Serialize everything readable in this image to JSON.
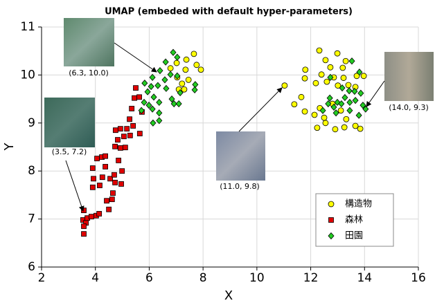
{
  "chart_data": {
    "type": "scatter",
    "title": "UMAP (embeded with default hyper-parameters)",
    "x_label": "X",
    "y_label": "Y",
    "xlim": [
      2,
      16
    ],
    "ylim": [
      6,
      11
    ],
    "xticks": [
      2,
      4,
      6,
      8,
      10,
      12,
      14,
      16
    ],
    "yticks": [
      6,
      7,
      8,
      9,
      10,
      11
    ],
    "grid": true,
    "legend": "lower right",
    "series": [
      {
        "name": "構造物",
        "color": "#ffff00",
        "marker": "circle",
        "x": [
          7.66,
          7.38,
          7.02,
          7.92,
          7.76,
          6.79,
          7.35,
          7.04,
          7.46,
          7.22,
          7.3,
          7.1,
          12.32,
          12.99,
          11.8,
          12.55,
          12.73,
          13.19,
          13.3,
          12.4,
          12.86,
          13.22,
          13.71,
          13.97,
          11.78,
          12.19,
          12.6,
          13.01,
          13.4,
          13.66,
          11.39,
          11.65,
          11.78,
          12.14,
          12.34,
          12.5,
          12.81,
          13.12,
          13.32,
          12.24,
          12.55,
          12.91,
          13.25,
          13.66,
          13.84,
          11.03
        ],
        "values": [
          10.44,
          10.32,
          10.25,
          10.11,
          10.21,
          10.14,
          10.11,
          9.95,
          9.9,
          9.82,
          9.7,
          9.7,
          10.51,
          10.45,
          10.11,
          10.31,
          10.16,
          10.15,
          10.29,
          10.01,
          9.95,
          9.94,
          9.98,
          9.98,
          9.93,
          9.83,
          9.86,
          9.78,
          9.79,
          9.75,
          9.39,
          9.54,
          9.24,
          9.17,
          9.31,
          9.11,
          9.4,
          9.26,
          9.08,
          8.9,
          9.0,
          8.87,
          8.91,
          8.94,
          8.88,
          9.78
        ]
      },
      {
        "name": "森林",
        "color": "#e00000",
        "marker": "square",
        "x": [
          3.57,
          3.54,
          3.65,
          3.57,
          3.57,
          3.7,
          3.85,
          4.03,
          4.14,
          3.9,
          3.93,
          3.9,
          4.06,
          4.24,
          4.37,
          4.37,
          4.26,
          4.16,
          4.42,
          4.5,
          4.62,
          4.65,
          4.73,
          4.55,
          4.7,
          4.96,
          4.86,
          4.93,
          4.73,
          4.83,
          5.11,
          5.06,
          4.75,
          4.93,
          5.17,
          5.4,
          5.65,
          5.27,
          5.35,
          5.45,
          5.5,
          5.63,
          5.73,
          5.29,
          4.99
        ],
        "values": [
          7.18,
          6.98,
          6.92,
          6.85,
          6.69,
          7.02,
          7.05,
          7.07,
          7.11,
          7.66,
          7.84,
          8.06,
          8.26,
          8.29,
          8.31,
          8.09,
          7.87,
          7.7,
          7.38,
          7.2,
          7.41,
          7.54,
          7.76,
          7.84,
          7.92,
          7.73,
          8.22,
          8.48,
          8.51,
          8.65,
          8.49,
          8.72,
          8.85,
          8.88,
          8.88,
          8.94,
          8.78,
          9.08,
          9.3,
          9.52,
          9.73,
          9.54,
          9.23,
          8.74,
          8.0
        ]
      },
      {
        "name": "田園",
        "color": "#22cc22",
        "marker": "diamond",
        "x": [
          6.89,
          7.04,
          6.61,
          6.4,
          6.79,
          6.12,
          6.58,
          6.32,
          6.07,
          5.83,
          5.94,
          6.17,
          5.81,
          6.37,
          6.63,
          7.04,
          7.71,
          7.69,
          7.15,
          6.84,
          6.92,
          7.1,
          6.12,
          6.37,
          6.14,
          6.37,
          5.71,
          5.99,
          13.53,
          13.81,
          12.73,
          13.17,
          13.27,
          13.43,
          13.63,
          13.86,
          12.71,
          12.99,
          12.65,
          12.86,
          13.14,
          13.45,
          13.66,
          12.45,
          13.45,
          13.94,
          14.04,
          12.94,
          13.79
        ],
        "values": [
          10.47,
          10.37,
          10.27,
          10.09,
          10.01,
          9.95,
          9.9,
          9.78,
          9.76,
          9.83,
          9.65,
          9.54,
          9.43,
          9.43,
          9.72,
          9.98,
          9.8,
          9.69,
          9.63,
          9.5,
          9.4,
          9.4,
          9.29,
          9.21,
          9.0,
          9.05,
          9.26,
          9.37,
          10.29,
          10.06,
          9.95,
          9.73,
          9.53,
          9.67,
          9.66,
          9.62,
          9.52,
          9.43,
          9.4,
          9.33,
          9.4,
          9.43,
          9.47,
          9.26,
          9.26,
          9.37,
          9.29,
          9.21,
          9.16
        ]
      }
    ],
    "annotations": [
      {
        "text": "(6.3, 10.0)"
      },
      {
        "text": "(3.5, 7.2)"
      },
      {
        "text": "(11.0, 9.8)"
      },
      {
        "text": "(14.0, 9.3)"
      }
    ]
  }
}
